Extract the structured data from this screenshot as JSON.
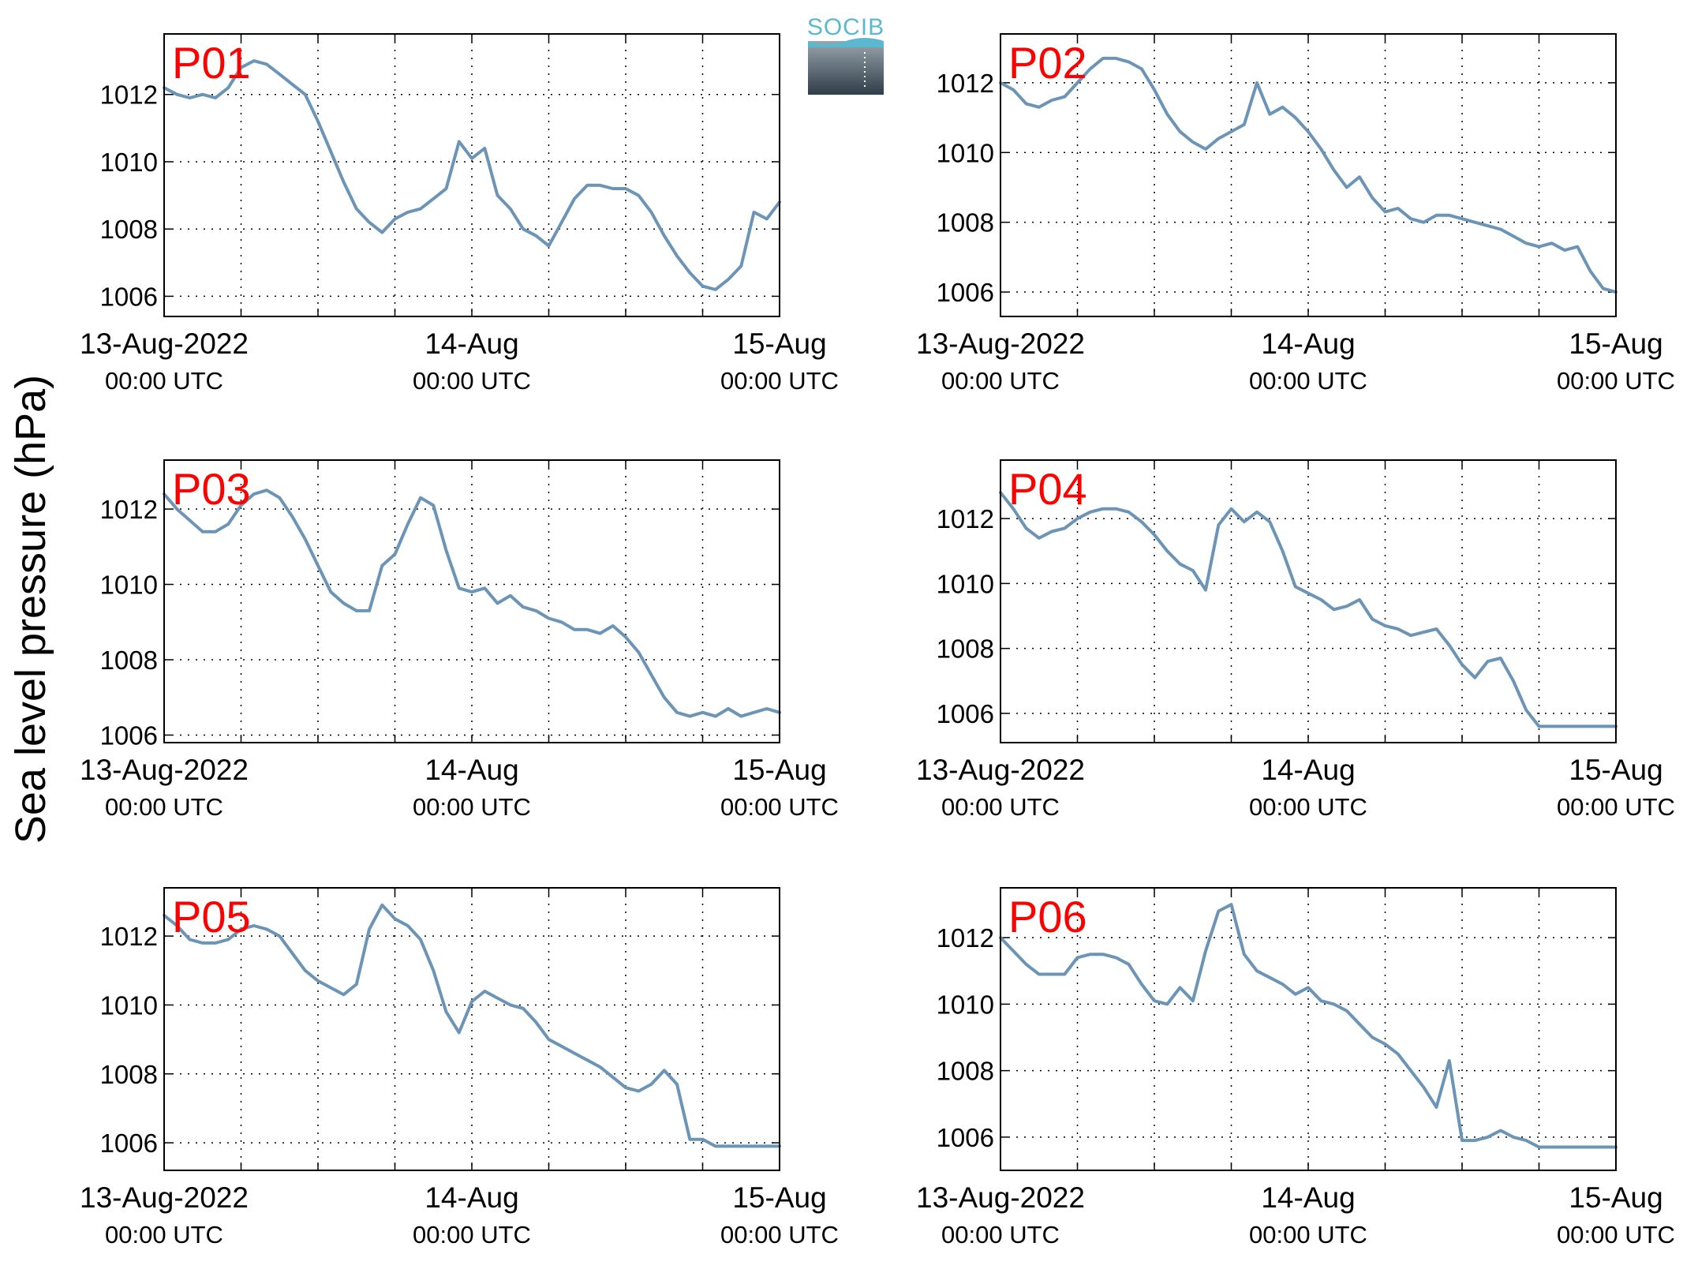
{
  "figure": {
    "ylabel": "Sea level pressure (hPa)",
    "logo_text": "SOCIB",
    "colors": {
      "line": "#6b94b6",
      "panel_label": "#ff0000",
      "grid": "#000000"
    }
  },
  "chart_data": [
    {
      "type": "line",
      "name": "P01",
      "xlim": [
        "2022-08-13 00:00",
        "2022-08-15 00:00"
      ],
      "ylim": [
        1005.4,
        1013.8
      ],
      "yticks": [
        1006,
        1008,
        1010,
        1012
      ],
      "xtick_labels": [
        {
          "date": "13-Aug-2022",
          "time": "00:00 UTC"
        },
        {
          "date": "14-Aug",
          "time": "00:00 UTC"
        },
        {
          "date": "15-Aug",
          "time": "00:00 UTC"
        }
      ],
      "grid": true,
      "x_hours": [
        0,
        1,
        2,
        3,
        4,
        5,
        6,
        7,
        8,
        9,
        10,
        11,
        12,
        13,
        14,
        15,
        16,
        17,
        18,
        19,
        20,
        21,
        22,
        23,
        24,
        25,
        26,
        27,
        28,
        29,
        30,
        31,
        32,
        33,
        34,
        35,
        36,
        37,
        38,
        39,
        40,
        41,
        42,
        43,
        44,
        45,
        46,
        47,
        48
      ],
      "y": [
        1012.2,
        1012.0,
        1011.9,
        1012.0,
        1011.9,
        1012.2,
        1012.8,
        1013.0,
        1012.9,
        1012.6,
        1012.3,
        1012.0,
        1011.2,
        1010.3,
        1009.4,
        1008.6,
        1008.2,
        1007.9,
        1008.3,
        1008.5,
        1008.6,
        1008.9,
        1009.2,
        1010.6,
        1010.1,
        1010.4,
        1009.0,
        1008.6,
        1008.0,
        1007.8,
        1007.5,
        1008.2,
        1008.9,
        1009.3,
        1009.3,
        1009.2,
        1009.2,
        1009.0,
        1008.5,
        1007.8,
        1007.2,
        1006.7,
        1006.3,
        1006.2,
        1006.5,
        1006.9,
        1008.5,
        1008.3,
        1008.8
      ]
    },
    {
      "type": "line",
      "name": "P02",
      "xlim": [
        "2022-08-13 00:00",
        "2022-08-15 00:00"
      ],
      "ylim": [
        1005.3,
        1013.4
      ],
      "yticks": [
        1006,
        1008,
        1010,
        1012
      ],
      "xtick_labels": [
        {
          "date": "13-Aug-2022",
          "time": "00:00 UTC"
        },
        {
          "date": "14-Aug",
          "time": "00:00 UTC"
        },
        {
          "date": "15-Aug",
          "time": "00:00 UTC"
        }
      ],
      "grid": true,
      "x_hours": [
        0,
        1,
        2,
        3,
        4,
        5,
        6,
        7,
        8,
        9,
        10,
        11,
        12,
        13,
        14,
        15,
        16,
        17,
        18,
        19,
        20,
        21,
        22,
        23,
        24,
        25,
        26,
        27,
        28,
        29,
        30,
        31,
        32,
        33,
        34,
        35,
        36,
        37,
        38,
        39,
        40,
        41,
        42,
        43,
        44,
        45,
        46,
        47,
        48
      ],
      "y": [
        1012.0,
        1011.8,
        1011.4,
        1011.3,
        1011.5,
        1011.6,
        1012.0,
        1012.4,
        1012.7,
        1012.7,
        1012.6,
        1012.4,
        1011.8,
        1011.1,
        1010.6,
        1010.3,
        1010.1,
        1010.4,
        1010.6,
        1010.8,
        1012.0,
        1011.1,
        1011.3,
        1011.0,
        1010.6,
        1010.1,
        1009.5,
        1009.0,
        1009.3,
        1008.7,
        1008.3,
        1008.4,
        1008.1,
        1008.0,
        1008.2,
        1008.2,
        1008.1,
        1008.0,
        1007.9,
        1007.8,
        1007.6,
        1007.4,
        1007.3,
        1007.4,
        1007.2,
        1007.3,
        1006.6,
        1006.1,
        1006.0
      ]
    },
    {
      "type": "line",
      "name": "P03",
      "xlim": [
        "2022-08-13 00:00",
        "2022-08-15 00:00"
      ],
      "ylim": [
        1005.8,
        1013.3
      ],
      "yticks": [
        1006,
        1008,
        1010,
        1012
      ],
      "xtick_labels": [
        {
          "date": "13-Aug-2022",
          "time": "00:00 UTC"
        },
        {
          "date": "14-Aug",
          "time": "00:00 UTC"
        },
        {
          "date": "15-Aug",
          "time": "00:00 UTC"
        }
      ],
      "grid": true,
      "x_hours": [
        0,
        1,
        2,
        3,
        4,
        5,
        6,
        7,
        8,
        9,
        10,
        11,
        12,
        13,
        14,
        15,
        16,
        17,
        18,
        19,
        20,
        21,
        22,
        23,
        24,
        25,
        26,
        27,
        28,
        29,
        30,
        31,
        32,
        33,
        34,
        35,
        36,
        37,
        38,
        39,
        40,
        41,
        42,
        43,
        44,
        45,
        46,
        47,
        48
      ],
      "y": [
        1012.4,
        1012.0,
        1011.7,
        1011.4,
        1011.4,
        1011.6,
        1012.1,
        1012.4,
        1012.5,
        1012.3,
        1011.8,
        1011.2,
        1010.5,
        1009.8,
        1009.5,
        1009.3,
        1009.3,
        1010.5,
        1010.8,
        1011.6,
        1012.3,
        1012.1,
        1010.9,
        1009.9,
        1009.8,
        1009.9,
        1009.5,
        1009.7,
        1009.4,
        1009.3,
        1009.1,
        1009.0,
        1008.8,
        1008.8,
        1008.7,
        1008.9,
        1008.6,
        1008.2,
        1007.6,
        1007.0,
        1006.6,
        1006.5,
        1006.6,
        1006.5,
        1006.7,
        1006.5,
        1006.6,
        1006.7,
        1006.6
      ]
    },
    {
      "type": "line",
      "name": "P04",
      "xlim": [
        "2022-08-13 00:00",
        "2022-08-15 00:00"
      ],
      "ylim": [
        1005.1,
        1013.8
      ],
      "yticks": [
        1006,
        1008,
        1010,
        1012
      ],
      "xtick_labels": [
        {
          "date": "13-Aug-2022",
          "time": "00:00 UTC"
        },
        {
          "date": "14-Aug",
          "time": "00:00 UTC"
        },
        {
          "date": "15-Aug",
          "time": "00:00 UTC"
        }
      ],
      "grid": true,
      "x_hours": [
        0,
        1,
        2,
        3,
        4,
        5,
        6,
        7,
        8,
        9,
        10,
        11,
        12,
        13,
        14,
        15,
        16,
        17,
        18,
        19,
        20,
        21,
        22,
        23,
        24,
        25,
        26,
        27,
        28,
        29,
        30,
        31,
        32,
        33,
        34,
        35,
        36,
        37,
        38,
        39,
        40,
        41,
        42,
        43,
        44,
        45,
        46,
        47,
        48
      ],
      "y": [
        1012.8,
        1012.3,
        1011.7,
        1011.4,
        1011.6,
        1011.7,
        1012.0,
        1012.2,
        1012.3,
        1012.3,
        1012.2,
        1011.9,
        1011.5,
        1011.0,
        1010.6,
        1010.4,
        1009.8,
        1011.8,
        1012.3,
        1011.9,
        1012.2,
        1011.9,
        1011.0,
        1009.9,
        1009.7,
        1009.5,
        1009.2,
        1009.3,
        1009.5,
        1008.9,
        1008.7,
        1008.6,
        1008.4,
        1008.5,
        1008.6,
        1008.1,
        1007.5,
        1007.1,
        1007.6,
        1007.7,
        1007.0,
        1006.1,
        1005.6,
        1005.6,
        1005.6,
        1005.6,
        1005.6,
        1005.6,
        1005.6
      ]
    },
    {
      "type": "line",
      "name": "P05",
      "xlim": [
        "2022-08-13 00:00",
        "2022-08-15 00:00"
      ],
      "ylim": [
        1005.2,
        1013.4
      ],
      "yticks": [
        1006,
        1008,
        1010,
        1012
      ],
      "xtick_labels": [
        {
          "date": "13-Aug-2022",
          "time": "00:00 UTC"
        },
        {
          "date": "14-Aug",
          "time": "00:00 UTC"
        },
        {
          "date": "15-Aug",
          "time": "00:00 UTC"
        }
      ],
      "grid": true,
      "x_hours": [
        0,
        1,
        2,
        3,
        4,
        5,
        6,
        7,
        8,
        9,
        10,
        11,
        12,
        13,
        14,
        15,
        16,
        17,
        18,
        19,
        20,
        21,
        22,
        23,
        24,
        25,
        26,
        27,
        28,
        29,
        30,
        31,
        32,
        33,
        34,
        35,
        36,
        37,
        38,
        39,
        40,
        41,
        42,
        43,
        44,
        45,
        46,
        47,
        48
      ],
      "y": [
        1012.6,
        1012.3,
        1011.9,
        1011.8,
        1011.8,
        1011.9,
        1012.2,
        1012.3,
        1012.2,
        1012.0,
        1011.5,
        1011.0,
        1010.7,
        1010.5,
        1010.3,
        1010.6,
        1012.2,
        1012.9,
        1012.5,
        1012.3,
        1011.9,
        1011.0,
        1009.8,
        1009.2,
        1010.1,
        1010.4,
        1010.2,
        1010.0,
        1009.9,
        1009.5,
        1009.0,
        1008.8,
        1008.6,
        1008.4,
        1008.2,
        1007.9,
        1007.6,
        1007.5,
        1007.7,
        1008.1,
        1007.7,
        1006.1,
        1006.1,
        1005.9,
        1005.9,
        1005.9,
        1005.9,
        1005.9,
        1005.9
      ]
    },
    {
      "type": "line",
      "name": "P06",
      "xlim": [
        "2022-08-13 00:00",
        "2022-08-15 00:00"
      ],
      "ylim": [
        1005.0,
        1013.5
      ],
      "yticks": [
        1006,
        1008,
        1010,
        1012
      ],
      "xtick_labels": [
        {
          "date": "13-Aug-2022",
          "time": "00:00 UTC"
        },
        {
          "date": "14-Aug",
          "time": "00:00 UTC"
        },
        {
          "date": "15-Aug",
          "time": "00:00 UTC"
        }
      ],
      "grid": true,
      "x_hours": [
        0,
        1,
        2,
        3,
        4,
        5,
        6,
        7,
        8,
        9,
        10,
        11,
        12,
        13,
        14,
        15,
        16,
        17,
        18,
        19,
        20,
        21,
        22,
        23,
        24,
        25,
        26,
        27,
        28,
        29,
        30,
        31,
        32,
        33,
        34,
        35,
        36,
        37,
        38,
        39,
        40,
        41,
        42,
        43,
        44,
        45,
        46,
        47,
        48
      ],
      "y": [
        1012.0,
        1011.6,
        1011.2,
        1010.9,
        1010.9,
        1010.9,
        1011.4,
        1011.5,
        1011.5,
        1011.4,
        1011.2,
        1010.6,
        1010.1,
        1010.0,
        1010.5,
        1010.1,
        1011.6,
        1012.8,
        1013.0,
        1011.5,
        1011.0,
        1010.8,
        1010.6,
        1010.3,
        1010.5,
        1010.1,
        1010.0,
        1009.8,
        1009.4,
        1009.0,
        1008.8,
        1008.5,
        1008.0,
        1007.5,
        1006.9,
        1008.3,
        1005.9,
        1005.9,
        1006.0,
        1006.2,
        1006.0,
        1005.9,
        1005.7,
        1005.7,
        1005.7,
        1005.7,
        1005.7,
        1005.7,
        1005.7
      ]
    }
  ]
}
